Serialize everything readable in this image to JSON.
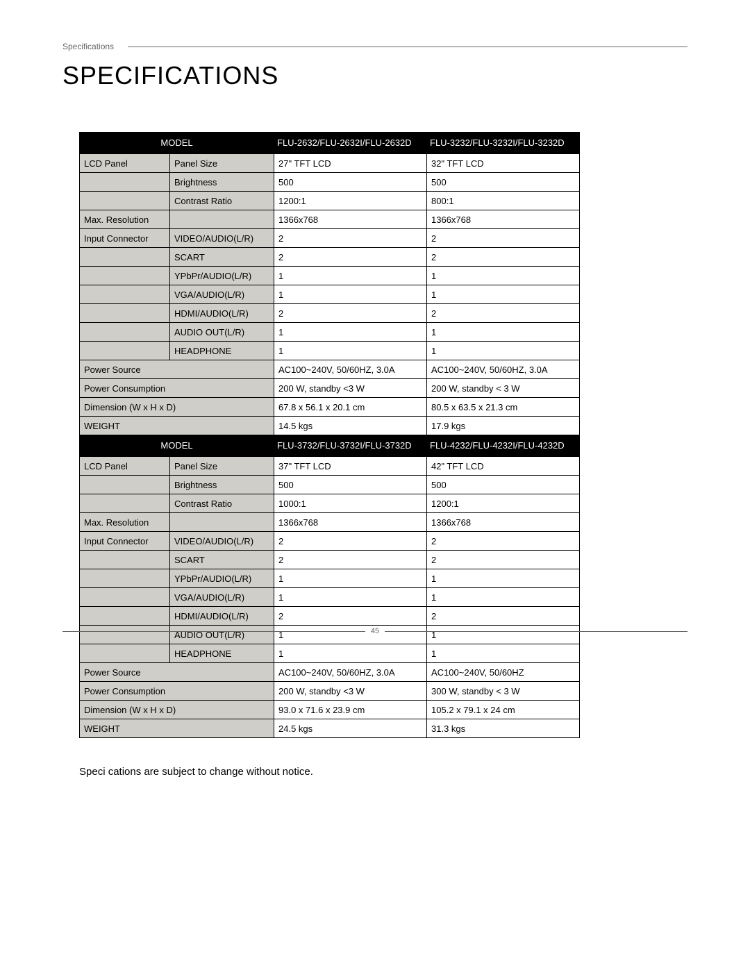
{
  "header_label": "Specifications",
  "title": "SPECIFICATIONS",
  "footnote": "Speci cations are subject to change without notice.",
  "page_number": "45",
  "tables": [
    {
      "model_header": "MODEL",
      "col_a": "FLU-2632/FLU-2632I/FLU-2632D",
      "col_b": "FLU-3232/FLU-3232I/FLU-3232D",
      "rows": [
        {
          "group": "LCD Panel",
          "label": "Panel Size",
          "a": "27\" TFT LCD",
          "b": "32\" TFT LCD"
        },
        {
          "group": "",
          "label": "Brightness",
          "a": "500",
          "b": "500"
        },
        {
          "group": "",
          "label": "Contrast Ratio",
          "a": "1200:1",
          "b": "800:1"
        },
        {
          "group": "Max. Resolution",
          "label": "",
          "a": "1366x768",
          "b": "1366x768"
        },
        {
          "group": "Input Connector",
          "label": "VIDEO/AUDIO(L/R)",
          "a": "2",
          "b": "2"
        },
        {
          "group": "",
          "label": "SCART",
          "a": "2",
          "b": "2"
        },
        {
          "group": "",
          "label": "YPbPr/AUDIO(L/R)",
          "a": "1",
          "b": "1"
        },
        {
          "group": "",
          "label": "VGA/AUDIO(L/R)",
          "a": "1",
          "b": "1"
        },
        {
          "group": "",
          "label": "HDMI/AUDIO(L/R)",
          "a": "2",
          "b": "2"
        },
        {
          "group": "",
          "label": "AUDIO OUT(L/R)",
          "a": "1",
          "b": "1"
        },
        {
          "group": "",
          "label": "HEADPHONE",
          "a": "1",
          "b": "1"
        },
        {
          "group": "Power Source",
          "span": true,
          "a": "AC100~240V, 50/60HZ, 3.0A",
          "b": "AC100~240V, 50/60HZ, 3.0A"
        },
        {
          "group": "Power Consumption",
          "span": true,
          "a": "200 W, standby <3 W",
          "b": "200 W, standby < 3 W"
        },
        {
          "group": "Dimension (W x H x D)",
          "span": true,
          "a": "67.8 x 56.1 x 20.1 cm",
          "b": "80.5 x 63.5 x 21.3 cm"
        },
        {
          "group": "WEIGHT",
          "span": true,
          "a": "14.5 kgs",
          "b": "17.9 kgs"
        }
      ]
    },
    {
      "model_header": "MODEL",
      "col_a": "FLU-3732/FLU-3732I/FLU-3732D",
      "col_b": "FLU-4232/FLU-4232I/FLU-4232D",
      "rows": [
        {
          "group": "LCD Panel",
          "label": "Panel Size",
          "a": "37\" TFT LCD",
          "b": "42\" TFT LCD"
        },
        {
          "group": "",
          "label": "Brightness",
          "a": "500",
          "b": "500"
        },
        {
          "group": "",
          "label": "Contrast Ratio",
          "a": "1000:1",
          "b": "1200:1"
        },
        {
          "group": "Max. Resolution",
          "label": "",
          "a": "1366x768",
          "b": "1366x768"
        },
        {
          "group": "Input Connector",
          "label": "VIDEO/AUDIO(L/R)",
          "a": "2",
          "b": "2"
        },
        {
          "group": "",
          "label": "SCART",
          "a": "2",
          "b": "2"
        },
        {
          "group": "",
          "label": "YPbPr/AUDIO(L/R)",
          "a": "1",
          "b": "1"
        },
        {
          "group": "",
          "label": "VGA/AUDIO(L/R)",
          "a": "1",
          "b": "1"
        },
        {
          "group": "",
          "label": "HDMI/AUDIO(L/R)",
          "a": "2",
          "b": "2"
        },
        {
          "group": "",
          "label": "AUDIO OUT(L/R)",
          "a": "1",
          "b": "1"
        },
        {
          "group": "",
          "label": "HEADPHONE",
          "a": "1",
          "b": "1"
        },
        {
          "group": "Power Source",
          "span": true,
          "a": "AC100~240V, 50/60HZ, 3.0A",
          "b": "AC100~240V, 50/60HZ"
        },
        {
          "group": "Power Consumption",
          "span": true,
          "a": "200 W, standby <3 W",
          "b": "300 W, standby < 3 W"
        },
        {
          "group": "Dimension (W x H x D)",
          "span": true,
          "a": "93.0 x 71.6 x 23.9 cm",
          "b": "105.2 x 79.1 x 24 cm"
        },
        {
          "group": "WEIGHT",
          "span": true,
          "a": "24.5 kgs",
          "b": "31.3 kgs"
        }
      ]
    }
  ]
}
